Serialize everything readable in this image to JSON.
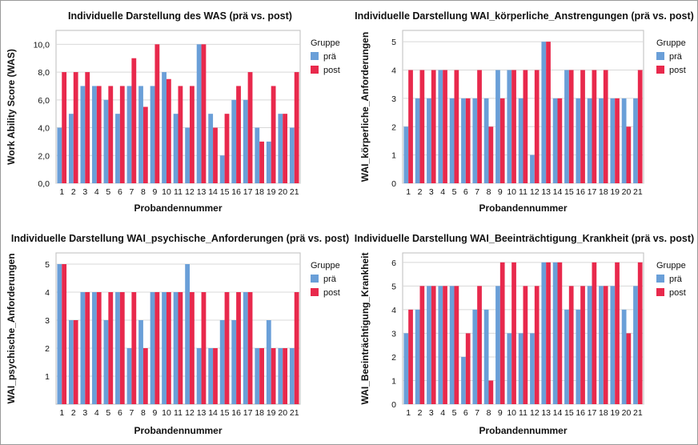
{
  "chart_data": [
    {
      "type": "bar",
      "title": "Individuelle Darstellung des WAS (prä vs. post)",
      "xlabel": "Probandennummer",
      "ylabel": "Work Ability Score (WAS)",
      "ylim": [
        0,
        11
      ],
      "yticks": [
        "0,0",
        "2,0",
        "4,0",
        "6,0",
        "8,0",
        "10,0"
      ],
      "ytick_values": [
        0,
        2,
        4,
        6,
        8,
        10
      ],
      "categories": [
        "1",
        "2",
        "3",
        "4",
        "5",
        "6",
        "7",
        "8",
        "9",
        "10",
        "11",
        "12",
        "13",
        "14",
        "15",
        "16",
        "17",
        "18",
        "19",
        "20",
        "21"
      ],
      "legend_title": "Gruppe",
      "series": [
        {
          "name": "prä",
          "color": "#6a9fd8",
          "values": [
            4,
            5,
            7,
            7,
            6,
            5,
            7,
            7,
            7,
            8,
            5,
            4,
            10,
            5,
            2,
            6,
            6,
            4,
            3,
            5,
            4
          ]
        },
        {
          "name": "post",
          "color": "#e8294c",
          "values": [
            8,
            8,
            8,
            7,
            7,
            7,
            9,
            5.5,
            10,
            7.5,
            7,
            7,
            10,
            4,
            5,
            7,
            8,
            3,
            7,
            5,
            8
          ]
        }
      ]
    },
    {
      "type": "bar",
      "title": "Individuelle Darstellung WAI_körperliche_Anstrengungen (prä vs. post)",
      "xlabel": "Probandennummer",
      "ylabel": "WAI_körperliche_Anforderungen",
      "ylim": [
        0,
        5.4
      ],
      "yticks": [
        "0",
        "1",
        "2",
        "3",
        "4",
        "5"
      ],
      "ytick_values": [
        0,
        1,
        2,
        3,
        4,
        5
      ],
      "categories": [
        "1",
        "2",
        "3",
        "4",
        "5",
        "6",
        "7",
        "8",
        "9",
        "10",
        "11",
        "12",
        "13",
        "14",
        "15",
        "16",
        "17",
        "18",
        "19",
        "20",
        "21"
      ],
      "legend_title": "Gruppe",
      "series": [
        {
          "name": "prä",
          "color": "#6a9fd8",
          "values": [
            2,
            3,
            3,
            4,
            3,
            3,
            3,
            3,
            4,
            4,
            3,
            1,
            5,
            3,
            4,
            3,
            3,
            3,
            3,
            3,
            3
          ]
        },
        {
          "name": "post",
          "color": "#e8294c",
          "values": [
            4,
            4,
            4,
            4,
            4,
            3,
            4,
            2,
            3,
            4,
            4,
            4,
            5,
            3,
            4,
            4,
            4,
            4,
            3,
            2,
            4
          ]
        }
      ]
    },
    {
      "type": "bar",
      "title": "Individuelle Darstellung WAI_psychische_Anforderungen (prä vs. post)",
      "xlabel": "Probandennummer",
      "ylabel": "WAI_psychische_Anforderungen",
      "ylim": [
        0,
        5.4
      ],
      "yticks": [
        "1",
        "2",
        "3",
        "4",
        "5"
      ],
      "ytick_values": [
        1,
        2,
        3,
        4,
        5
      ],
      "categories": [
        "1",
        "2",
        "3",
        "4",
        "5",
        "6",
        "7",
        "8",
        "9",
        "10",
        "11",
        "12",
        "13",
        "14",
        "15",
        "16",
        "17",
        "18",
        "19",
        "20",
        "21"
      ],
      "legend_title": "Gruppe",
      "series": [
        {
          "name": "prä",
          "color": "#6a9fd8",
          "values": [
            5,
            3,
            4,
            4,
            3,
            4,
            2,
            3,
            4,
            4,
            4,
            5,
            2,
            2,
            3,
            3,
            4,
            2,
            3,
            2,
            2
          ]
        },
        {
          "name": "post",
          "color": "#e8294c",
          "values": [
            5,
            3,
            4,
            4,
            4,
            4,
            4,
            2,
            4,
            4,
            4,
            4,
            4,
            2,
            4,
            4,
            4,
            2,
            2,
            2,
            4
          ]
        }
      ]
    },
    {
      "type": "bar",
      "title": "Individuelle Darstellung WAI_Beeinträchtigung_Krankheit (prä vs. post)",
      "xlabel": "Probandennummer",
      "ylabel": "WAI_Beeinträchtigung_Krankheit",
      "ylim": [
        0,
        6.4
      ],
      "yticks": [
        "0",
        "1",
        "2",
        "3",
        "4",
        "5",
        "6"
      ],
      "ytick_values": [
        0,
        1,
        2,
        3,
        4,
        5,
        6
      ],
      "categories": [
        "1",
        "2",
        "3",
        "4",
        "5",
        "6",
        "7",
        "8",
        "9",
        "10",
        "11",
        "12",
        "13",
        "14",
        "15",
        "16",
        "17",
        "18",
        "19",
        "20",
        "21"
      ],
      "legend_title": "Gruppe",
      "series": [
        {
          "name": "prä",
          "color": "#6a9fd8",
          "values": [
            3,
            4,
            5,
            5,
            5,
            2,
            4,
            4,
            5,
            3,
            3,
            3,
            6,
            6,
            4,
            4,
            5,
            5,
            5,
            4,
            5
          ]
        },
        {
          "name": "post",
          "color": "#e8294c",
          "values": [
            4,
            5,
            5,
            5,
            5,
            3,
            5,
            1,
            6,
            6,
            5,
            5,
            6,
            6,
            5,
            5,
            6,
            5,
            6,
            3,
            6
          ]
        }
      ]
    }
  ]
}
